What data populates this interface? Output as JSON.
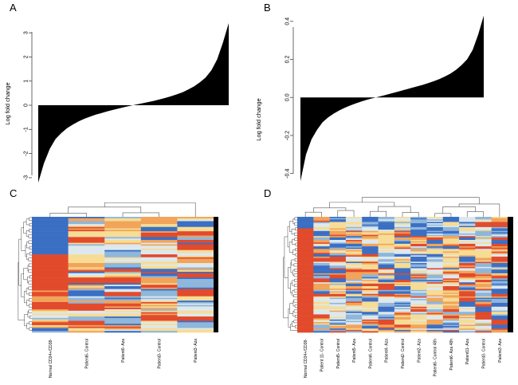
{
  "panels": {
    "a": {
      "letter": "A"
    },
    "b": {
      "letter": "B"
    },
    "c": {
      "letter": "C"
    },
    "d": {
      "letter": "D"
    }
  },
  "chart_data": [
    {
      "panel": "A",
      "type": "area",
      "ylabel": "Log fold change",
      "ylim": [
        -3.3,
        3.5
      ],
      "yticks": [
        "-3",
        "-2",
        "-1",
        "0",
        "1",
        "2",
        "3"
      ],
      "ytick_values": [
        -3,
        -2,
        -1,
        0,
        1,
        2,
        3
      ],
      "grid": false,
      "description_of_shape": "sorted values",
      "y": [
        -3.2,
        -2.4,
        -1.8,
        -1.4,
        -1.15,
        -0.95,
        -0.8,
        -0.67,
        -0.56,
        -0.47,
        -0.39,
        -0.32,
        -0.25,
        -0.19,
        -0.13,
        -0.07,
        -0.02,
        0.03,
        0.08,
        0.13,
        0.18,
        0.24,
        0.3,
        0.37,
        0.45,
        0.54,
        0.65,
        0.78,
        0.95,
        1.15,
        1.45,
        1.9,
        2.6,
        3.4
      ]
    },
    {
      "panel": "B",
      "type": "area",
      "ylabel": "Log fold change",
      "ylim": [
        -0.46,
        0.42
      ],
      "yticks": [
        "-0.4",
        "-0.2",
        "0.0",
        "0.2",
        "0.4"
      ],
      "ytick_values": [
        -0.4,
        -0.2,
        0.0,
        0.2,
        0.4
      ],
      "grid": false,
      "y": [
        -0.44,
        -0.3,
        -0.22,
        -0.17,
        -0.13,
        -0.105,
        -0.085,
        -0.068,
        -0.054,
        -0.042,
        -0.031,
        -0.021,
        -0.012,
        -0.004,
        0.003,
        0.01,
        0.018,
        0.026,
        0.034,
        0.042,
        0.05,
        0.058,
        0.066,
        0.075,
        0.085,
        0.096,
        0.11,
        0.125,
        0.145,
        0.17,
        0.2,
        0.25,
        0.33,
        0.43
      ]
    },
    {
      "panel": "C",
      "type": "heatmap",
      "columns": [
        "Normal CD34+/CD38-",
        "Patient6- Control",
        "Patient6- Aza",
        "Patient3- Control",
        "Patient3- Aza"
      ],
      "palette": [
        "#3a6fc4",
        "#8fb6db",
        "#dde8ee",
        "#f6dc95",
        "#f1a45a",
        "#e24a2c"
      ]
    },
    {
      "panel": "D",
      "type": "heatmap",
      "columns": [
        "Normal CD34+/CD38-",
        "Patient 11- Control",
        "Patient5- Control",
        "Patient5- Aza",
        "Patient4- Control",
        "Patient4- Aza",
        "Patient2- Control",
        "Patient2- Aza",
        "Patient6- Control 48h",
        "Patient6- Aza 48h",
        "Patient11- Aza",
        "Patient3- Control",
        "Patient3- Aza"
      ],
      "palette": [
        "#3a6fc4",
        "#8fb6db",
        "#dde8ee",
        "#f6dc95",
        "#f1a45a",
        "#e24a2c"
      ]
    }
  ]
}
